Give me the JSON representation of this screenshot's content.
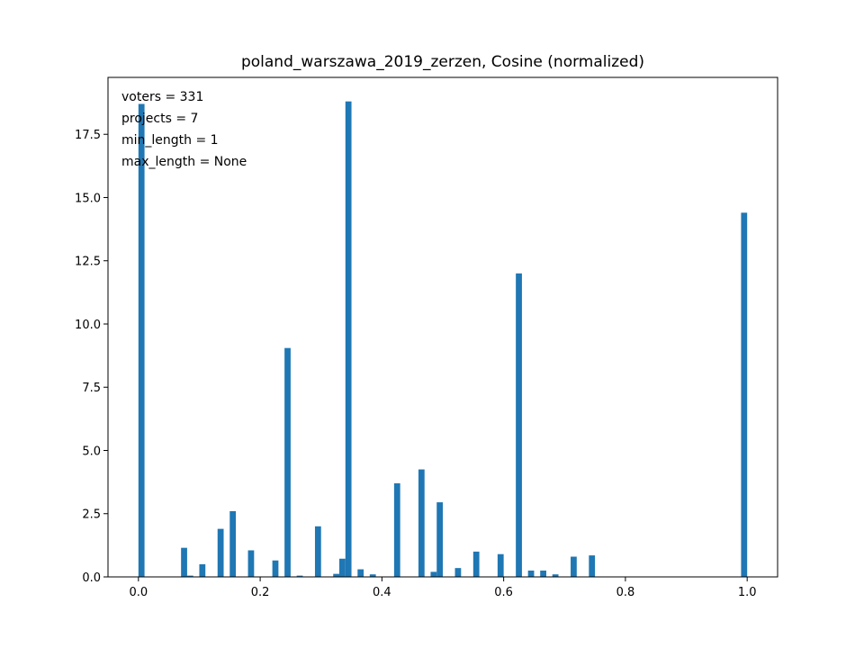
{
  "chart_data": {
    "type": "bar",
    "title": "poland_warszawa_2019_zerzen, Cosine (normalized)",
    "xlabel": "",
    "ylabel": "",
    "xlim": [
      -0.05,
      1.05
    ],
    "ylim": [
      0,
      19.75
    ],
    "grid": false,
    "bar_color": "#1f77b4",
    "bin_width": 0.01,
    "x_ticks": [
      {
        "value": 0.0,
        "label": "0.0"
      },
      {
        "value": 0.2,
        "label": "0.2"
      },
      {
        "value": 0.4,
        "label": "0.4"
      },
      {
        "value": 0.6,
        "label": "0.6"
      },
      {
        "value": 0.8,
        "label": "0.8"
      },
      {
        "value": 1.0,
        "label": "1.0"
      }
    ],
    "y_ticks": [
      {
        "value": 0.0,
        "label": "0.0"
      },
      {
        "value": 2.5,
        "label": "2.5"
      },
      {
        "value": 5.0,
        "label": "5.0"
      },
      {
        "value": 7.5,
        "label": "7.5"
      },
      {
        "value": 10.0,
        "label": "10.0"
      },
      {
        "value": 12.5,
        "label": "12.5"
      },
      {
        "value": 15.0,
        "label": "15.0"
      },
      {
        "value": 17.5,
        "label": "17.5"
      }
    ],
    "annotations": [
      "voters = 331",
      "projects = 7",
      "min_length = 1",
      "max_length = None"
    ],
    "bars": [
      {
        "x": 0.005,
        "value": 18.7
      },
      {
        "x": 0.075,
        "value": 1.15
      },
      {
        "x": 0.085,
        "value": 0.05
      },
      {
        "x": 0.105,
        "value": 0.5
      },
      {
        "x": 0.135,
        "value": 1.9
      },
      {
        "x": 0.155,
        "value": 2.6
      },
      {
        "x": 0.185,
        "value": 1.05
      },
      {
        "x": 0.225,
        "value": 0.65
      },
      {
        "x": 0.245,
        "value": 9.05
      },
      {
        "x": 0.265,
        "value": 0.05
      },
      {
        "x": 0.295,
        "value": 2.0
      },
      {
        "x": 0.325,
        "value": 0.12
      },
      {
        "x": 0.335,
        "value": 0.72
      },
      {
        "x": 0.345,
        "value": 18.8
      },
      {
        "x": 0.365,
        "value": 0.3
      },
      {
        "x": 0.385,
        "value": 0.1
      },
      {
        "x": 0.425,
        "value": 3.7
      },
      {
        "x": 0.465,
        "value": 4.25
      },
      {
        "x": 0.485,
        "value": 0.2
      },
      {
        "x": 0.495,
        "value": 2.95
      },
      {
        "x": 0.525,
        "value": 0.35
      },
      {
        "x": 0.555,
        "value": 1.0
      },
      {
        "x": 0.595,
        "value": 0.9
      },
      {
        "x": 0.625,
        "value": 12.0
      },
      {
        "x": 0.645,
        "value": 0.25
      },
      {
        "x": 0.665,
        "value": 0.25
      },
      {
        "x": 0.685,
        "value": 0.1
      },
      {
        "x": 0.715,
        "value": 0.8
      },
      {
        "x": 0.745,
        "value": 0.85
      },
      {
        "x": 0.995,
        "value": 14.4
      }
    ]
  }
}
